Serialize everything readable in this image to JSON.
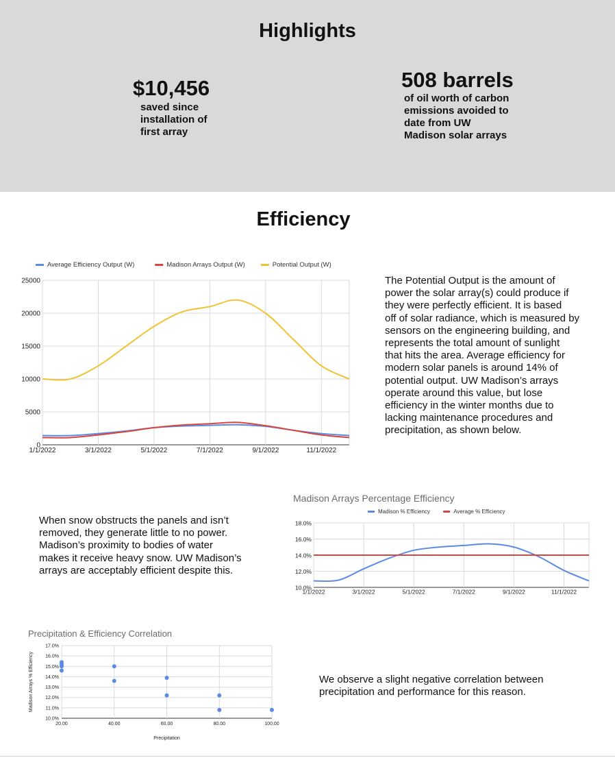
{
  "highlights": {
    "title": "Highlights",
    "savings": {
      "value": "$10,456",
      "caption": "saved since\ninstallation of\nfirst array"
    },
    "barrels": {
      "value": "508 barrels",
      "caption": "of oil worth of carbon\nemissions avoided to\ndate from UW\nMadison solar arrays"
    }
  },
  "efficiency": {
    "title": "Efficiency",
    "paragraph1": "The Potential Output is the amount of\npower the solar array(s) could produce if\nthey were perfectly efficient. It is based\noff of solar radiance, which is measured by\nsensors on the engineering building, and\nrepresents the total amount of sunlight\nthat hits the area. Average efficiency for\nmodern solar panels is around 14% of\npotential output. UW Madison’s arrays\noperate around this value, but lose\nefficiency in the winter months due to\nlacking maintenance procedures and\nprecipitation, as shown below.",
    "paragraph2": "When snow obstructs the panels and isn’t\nremoved, they generate little to no power.\nMadison’s proximity to bodies of water\nmakes it receive heavy snow. UW Madison’s\narrays are acceptably efficient despite this.",
    "paragraph3": "We observe a slight negative correlation between\nprecipitation and performance for this reason."
  },
  "colors": {
    "blue": "#5b8ae6",
    "red": "#d9463d",
    "yellow": "#f1c232",
    "grid": "#d9d9d9",
    "band": "#d9d9d9"
  },
  "chart_data": [
    {
      "type": "line",
      "title": "",
      "x": [
        "1/1/2022",
        "2/1/2022",
        "3/1/2022",
        "4/1/2022",
        "5/1/2022",
        "6/1/2022",
        "7/1/2022",
        "8/1/2022",
        "9/1/2022",
        "10/1/2022",
        "11/1/2022",
        "12/1/2022"
      ],
      "x_tick_labels": [
        "1/1/2022",
        "3/1/2022",
        "5/1/2022",
        "7/1/2022",
        "9/1/2022",
        "11/1/2022"
      ],
      "series": [
        {
          "name": "Average Efficiency Output (W)",
          "color": "#5b8ae6",
          "values": [
            1400,
            1400,
            1700,
            2100,
            2600,
            2850,
            2950,
            3050,
            2800,
            2200,
            1700,
            1400
          ]
        },
        {
          "name": "Madison Arrays Output (W)",
          "color": "#d9463d",
          "values": [
            1100,
            1100,
            1500,
            2000,
            2600,
            3000,
            3200,
            3400,
            2900,
            2200,
            1500,
            1100
          ]
        },
        {
          "name": "Potential Output (W)",
          "color": "#f1c232",
          "values": [
            10000,
            10000,
            12000,
            15000,
            18000,
            20200,
            21000,
            22000,
            20000,
            16000,
            12000,
            10000
          ]
        }
      ],
      "y_ticks": [
        "0",
        "5000",
        "10000",
        "15000",
        "20000",
        "25000"
      ],
      "ylim": [
        0,
        25000
      ],
      "legend": "top",
      "grid": true
    },
    {
      "type": "line",
      "title": "Madison Arrays Percentage Efficiency",
      "x": [
        "1/1/2022",
        "2/1/2022",
        "3/1/2022",
        "4/1/2022",
        "5/1/2022",
        "6/1/2022",
        "7/1/2022",
        "8/1/2022",
        "9/1/2022",
        "10/1/2022",
        "11/1/2022",
        "12/1/2022"
      ],
      "x_tick_labels": [
        "1/1/2022",
        "3/1/2022",
        "5/1/2022",
        "7/1/2022",
        "9/1/2022",
        "11/1/2022"
      ],
      "series": [
        {
          "name": "Madison % Efficiency",
          "color": "#5b8ae6",
          "values": [
            10.8,
            10.9,
            12.3,
            13.6,
            14.6,
            15.0,
            15.2,
            15.4,
            15.0,
            13.8,
            12.1,
            10.8
          ]
        },
        {
          "name": "Average % Efficiency",
          "color": "#d9463d",
          "values": [
            14,
            14,
            14,
            14,
            14,
            14,
            14,
            14,
            14,
            14,
            14,
            14
          ]
        }
      ],
      "y_ticks": [
        "10.0%",
        "12.0%",
        "14.0%",
        "16.0%",
        "18.0%"
      ],
      "ylim": [
        10,
        18
      ],
      "legend": "top",
      "grid": true
    },
    {
      "type": "scatter",
      "title": "Precipitation & Efficiency Correlation",
      "xlabel": "Precipitation",
      "ylabel": "Madison Arrays % Efficiency",
      "points": [
        {
          "x": 20,
          "y": 15.4
        },
        {
          "x": 20,
          "y": 15.2
        },
        {
          "x": 20,
          "y": 15.0
        },
        {
          "x": 20,
          "y": 14.6
        },
        {
          "x": 40,
          "y": 15.0
        },
        {
          "x": 40,
          "y": 13.6
        },
        {
          "x": 60,
          "y": 13.9
        },
        {
          "x": 60,
          "y": 12.2
        },
        {
          "x": 80,
          "y": 12.2
        },
        {
          "x": 80,
          "y": 10.8
        },
        {
          "x": 100,
          "y": 10.8
        }
      ],
      "x_ticks": [
        "20.00",
        "40.00",
        "60.00",
        "80.00",
        "100.00"
      ],
      "y_ticks": [
        "10.0%",
        "11.0%",
        "12.0%",
        "13.0%",
        "14.0%",
        "15.0%",
        "16.0%",
        "17.0%"
      ],
      "xlim": [
        20,
        100
      ],
      "ylim": [
        10,
        17
      ],
      "color": "#5b8ae6",
      "grid": true
    }
  ]
}
